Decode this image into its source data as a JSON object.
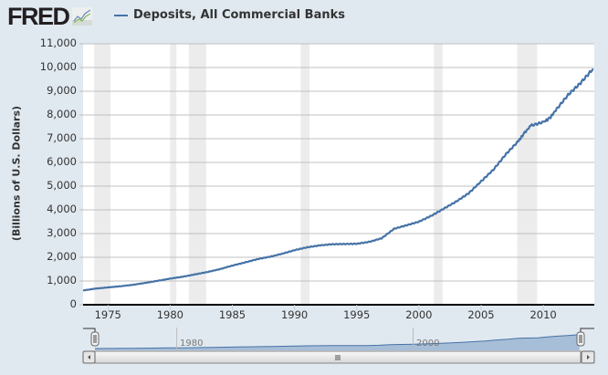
{
  "header": {
    "logo_text": "FRED",
    "logo_icon": "line-chart-icon",
    "legend_label": "Deposits, All Commercial Banks",
    "legend_color": "#4572a7"
  },
  "chart_data": {
    "type": "line",
    "title": "Deposits, All Commercial Banks",
    "xlabel": "",
    "ylabel": "(Billions of U.S. Dollars)",
    "ylim": [
      0,
      11000
    ],
    "xlim": [
      1973,
      2014.1
    ],
    "y_ticks": [
      "0",
      "1,000",
      "2,000",
      "3,000",
      "4,000",
      "5,000",
      "6,000",
      "7,000",
      "8,000",
      "9,000",
      "10,000",
      "11,000"
    ],
    "x_ticks": [
      "1975",
      "1980",
      "1985",
      "1990",
      "1995",
      "2000",
      "2005",
      "2010"
    ],
    "grid": true,
    "legend_position": "top",
    "recessions": [
      [
        1973.9,
        1975.2
      ],
      [
        1980.0,
        1980.5
      ],
      [
        1981.5,
        1982.9
      ],
      [
        1990.5,
        1991.2
      ],
      [
        2001.2,
        2001.9
      ],
      [
        2007.9,
        2009.5
      ]
    ],
    "series": [
      {
        "name": "Deposits, All Commercial Banks",
        "color": "#4572a7",
        "x": [
          1973,
          1974,
          1975,
          1976,
          1977,
          1978,
          1979,
          1980,
          1981,
          1982,
          1983,
          1984,
          1985,
          1986,
          1987,
          1988,
          1989,
          1990,
          1991,
          1992,
          1993,
          1994,
          1995,
          1996,
          1997,
          1998,
          1999,
          2000,
          2001,
          2002,
          2003,
          2004,
          2005,
          2006,
          2007,
          2008,
          2008.5,
          2009,
          2010,
          2010.5,
          2011,
          2012,
          2013,
          2014
        ],
        "values": [
          600,
          680,
          730,
          780,
          840,
          920,
          1010,
          1100,
          1180,
          1280,
          1380,
          1500,
          1650,
          1780,
          1920,
          2020,
          2150,
          2300,
          2420,
          2500,
          2550,
          2560,
          2570,
          2650,
          2800,
          3200,
          3350,
          3500,
          3750,
          4050,
          4350,
          4700,
          5200,
          5700,
          6350,
          6900,
          7250,
          7550,
          7700,
          7850,
          8200,
          8850,
          9350,
          9950
        ]
      }
    ]
  },
  "navigator": {
    "labels": [
      "1980",
      "2000"
    ],
    "scroll_left": "scroll-left-arrow",
    "scroll_right": "scroll-right-arrow",
    "grip": "III"
  }
}
